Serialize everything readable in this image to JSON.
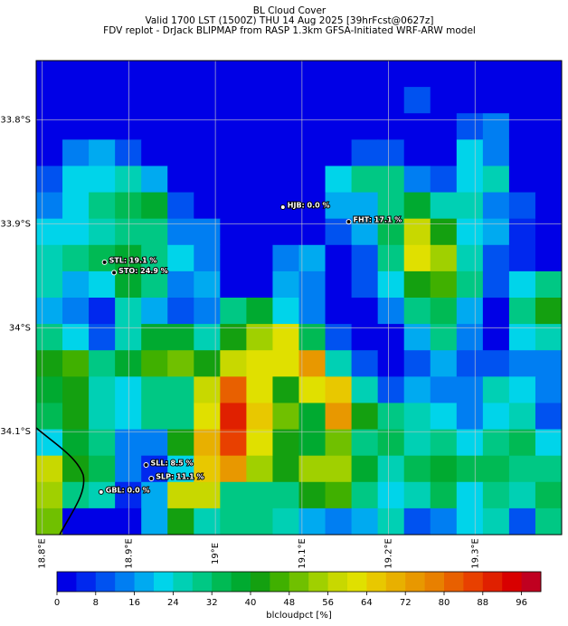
{
  "chart_data": {
    "type": "heatmap",
    "title": "BL Cloud Cover",
    "subtitle": [
      "Valid 1700 LST (1500Z) THU 14 Aug 2025 [39hrFcst@0627z]",
      "FDV replot - DrJack BLIPMAP from RASP 1.3km GFSA-Initiated WRF-ARW model"
    ],
    "xlim": [
      18.793,
      19.4
    ],
    "ylim": [
      -34.199,
      -33.743
    ],
    "xticks": [
      {
        "value": 18.8,
        "label": "18.8°E"
      },
      {
        "value": 18.9,
        "label": "18.9°E"
      },
      {
        "value": 19.0,
        "label": "19°E"
      },
      {
        "value": 19.1,
        "label": "19.1°E"
      },
      {
        "value": 19.2,
        "label": "19.2°E"
      },
      {
        "value": 19.3,
        "label": "19.3°E"
      }
    ],
    "yticks": [
      {
        "value": -33.8,
        "label": "33.8°S"
      },
      {
        "value": -33.9,
        "label": "33.9°S"
      },
      {
        "value": -34.0,
        "label": "34°S"
      },
      {
        "value": -34.1,
        "label": "34.1°S"
      }
    ],
    "grid": true,
    "z": [
      [
        0,
        0,
        0,
        0,
        0,
        0,
        0,
        0,
        0,
        0,
        0,
        0,
        0,
        0,
        0,
        0,
        0,
        0,
        0,
        0
      ],
      [
        0,
        0,
        0,
        0,
        0,
        0,
        0,
        0,
        0,
        0,
        0,
        0,
        0,
        0,
        10,
        0,
        0,
        0,
        0,
        0
      ],
      [
        0,
        0,
        0,
        0,
        0,
        0,
        0,
        0,
        0,
        0,
        0,
        0,
        0,
        0,
        0,
        0,
        8,
        12,
        0,
        0
      ],
      [
        0,
        12,
        18,
        10,
        0,
        0,
        0,
        0,
        0,
        0,
        0,
        0,
        8,
        8,
        0,
        0,
        20,
        14,
        0,
        0
      ],
      [
        8,
        20,
        22,
        26,
        18,
        0,
        0,
        0,
        0,
        0,
        0,
        20,
        28,
        30,
        14,
        10,
        22,
        24,
        0,
        0
      ],
      [
        14,
        22,
        28,
        34,
        36,
        10,
        0,
        0,
        0,
        0,
        0,
        18,
        16,
        28,
        36,
        26,
        24,
        14,
        8,
        0
      ],
      [
        20,
        22,
        26,
        28,
        30,
        12,
        14,
        0,
        0,
        0,
        0,
        8,
        18,
        34,
        56,
        40,
        22,
        16,
        6,
        0
      ],
      [
        26,
        30,
        34,
        38,
        28,
        20,
        12,
        0,
        0,
        12,
        18,
        0,
        10,
        30,
        60,
        52,
        26,
        10,
        6,
        0
      ],
      [
        24,
        18,
        20,
        36,
        30,
        12,
        16,
        0,
        0,
        16,
        12,
        0,
        8,
        22,
        40,
        46,
        30,
        8,
        22,
        28
      ],
      [
        16,
        12,
        6,
        24,
        18,
        10,
        14,
        28,
        36,
        22,
        14,
        0,
        0,
        14,
        30,
        34,
        18,
        0,
        30,
        40
      ],
      [
        30,
        22,
        8,
        24,
        36,
        38,
        26,
        40,
        52,
        62,
        34,
        8,
        0,
        0,
        18,
        28,
        12,
        0,
        20,
        24
      ],
      [
        40,
        44,
        30,
        36,
        44,
        48,
        40,
        58,
        60,
        62,
        74,
        24,
        10,
        0,
        8,
        16,
        8,
        8,
        12,
        14
      ],
      [
        36,
        40,
        24,
        22,
        28,
        30,
        56,
        80,
        60,
        42,
        62,
        64,
        26,
        10,
        18,
        14,
        12,
        26,
        20,
        14
      ],
      [
        34,
        40,
        26,
        20,
        28,
        30,
        60,
        88,
        64,
        50,
        38,
        72,
        40,
        28,
        24,
        20,
        14,
        22,
        24,
        10
      ],
      [
        20,
        36,
        30,
        14,
        12,
        40,
        70,
        86,
        60,
        42,
        38,
        48,
        30,
        34,
        26,
        30,
        22,
        28,
        34,
        22
      ],
      [
        58,
        40,
        34,
        12,
        6,
        20,
        66,
        72,
        52,
        40,
        52,
        54,
        36,
        24,
        32,
        38,
        34,
        34,
        28,
        30
      ],
      [
        52,
        30,
        26,
        6,
        16,
        56,
        58,
        30,
        28,
        30,
        40,
        46,
        28,
        20,
        26,
        32,
        20,
        28,
        24,
        34
      ],
      [
        50,
        0,
        0,
        2,
        16,
        40,
        24,
        28,
        30,
        24,
        18,
        14,
        18,
        26,
        10,
        12,
        20,
        24,
        10,
        28
      ]
    ],
    "colorbar": {
      "label": "blcloudpct [%]",
      "lim": [
        0,
        100
      ],
      "ticks": [
        0,
        8,
        16,
        24,
        32,
        40,
        48,
        56,
        64,
        72,
        80,
        88,
        96
      ],
      "colors": [
        "#0000e6",
        "#0028ee",
        "#0052f0",
        "#007ef2",
        "#00aaf0",
        "#00d4ea",
        "#00d0b4",
        "#00c884",
        "#00ba54",
        "#00aa30",
        "#14a010",
        "#40b000",
        "#70c000",
        "#a0d000",
        "#c8d800",
        "#e0e000",
        "#e8c800",
        "#e8b000",
        "#e89800",
        "#e88000",
        "#e86000",
        "#e84000",
        "#e02000",
        "#d80000",
        "#c00020"
      ]
    },
    "stations": [
      {
        "lon": 19.078,
        "lat": -33.884,
        "value": 0.0,
        "value_label": "HJB: 0.0 %"
      },
      {
        "lon": 19.154,
        "lat": -33.898,
        "value": 17.1,
        "value_label": "FHT: 17.1 %"
      },
      {
        "lon": 18.872,
        "lat": -33.937,
        "value": 19.1,
        "value_label": "STL: 19.1 %"
      },
      {
        "lon": 18.883,
        "lat": -33.947,
        "value": 24.9,
        "value_label": "STO: 24.9 %"
      },
      {
        "lon": 18.92,
        "lat": -34.132,
        "value": 8.5,
        "value_label": "SLL: 8.5 %"
      },
      {
        "lon": 18.926,
        "lat": -34.145,
        "value": 11.1,
        "value_label": "SLP: 11.1 %"
      },
      {
        "lon": 18.868,
        "lat": -34.158,
        "value": 0.0,
        "value_label": "GBL: 0.0 %"
      }
    ]
  }
}
